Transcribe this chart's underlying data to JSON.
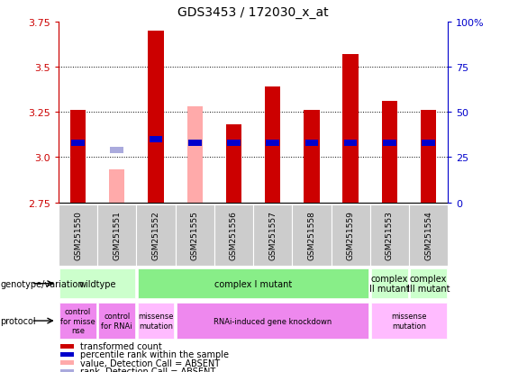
{
  "title": "GDS3453 / 172030_x_at",
  "samples": [
    "GSM251550",
    "GSM251551",
    "GSM251552",
    "GSM251555",
    "GSM251556",
    "GSM251557",
    "GSM251558",
    "GSM251559",
    "GSM251553",
    "GSM251554"
  ],
  "red_values": [
    3.26,
    null,
    3.7,
    null,
    3.18,
    3.39,
    3.26,
    3.57,
    3.31,
    3.26
  ],
  "pink_values": [
    null,
    2.93,
    null,
    3.28,
    null,
    null,
    null,
    null,
    null,
    null
  ],
  "blue_values": [
    3.08,
    null,
    3.1,
    3.08,
    3.08,
    3.08,
    3.08,
    3.08,
    3.08,
    3.08
  ],
  "light_blue_values": [
    null,
    3.04,
    null,
    null,
    null,
    null,
    null,
    null,
    null,
    null
  ],
  "y_min": 2.75,
  "y_max": 3.75,
  "y_ticks_left": [
    2.75,
    3.0,
    3.25,
    3.5,
    3.75
  ],
  "y_ticks_right": [
    0,
    25,
    50,
    75,
    100
  ],
  "bar_width": 0.4,
  "background_color": "#ffffff",
  "plot_bg_color": "#ffffff",
  "red_color": "#cc0000",
  "pink_color": "#ffaaaa",
  "blue_color": "#0000cc",
  "light_blue_color": "#aaaadd",
  "label_bg_color": "#cccccc",
  "genotype_labels": [
    {
      "text": "wildtype",
      "span": [
        0,
        2
      ],
      "color": "#ccffcc"
    },
    {
      "text": "complex I mutant",
      "span": [
        2,
        8
      ],
      "color": "#88ee88"
    },
    {
      "text": "complex\nII mutant",
      "span": [
        8,
        9
      ],
      "color": "#ccffcc"
    },
    {
      "text": "complex\nIII mutant",
      "span": [
        9,
        10
      ],
      "color": "#ccffcc"
    }
  ],
  "protocol_labels": [
    {
      "text": "control\nfor misse\nnse",
      "span": [
        0,
        1
      ],
      "color": "#ee88ee"
    },
    {
      "text": "control\nfor RNAi",
      "span": [
        1,
        2
      ],
      "color": "#ee88ee"
    },
    {
      "text": "missense\nmutation",
      "span": [
        2,
        3
      ],
      "color": "#ffbbff"
    },
    {
      "text": "RNAi-induced gene knockdown",
      "span": [
        3,
        8
      ],
      "color": "#ee88ee"
    },
    {
      "text": "missense\nmutation",
      "span": [
        8,
        10
      ],
      "color": "#ffbbff"
    }
  ],
  "legend_items": [
    {
      "label": "transformed count",
      "color": "#cc0000"
    },
    {
      "label": "percentile rank within the sample",
      "color": "#0000cc"
    },
    {
      "label": "value, Detection Call = ABSENT",
      "color": "#ffaaaa"
    },
    {
      "label": "rank, Detection Call = ABSENT",
      "color": "#aaaadd"
    }
  ]
}
